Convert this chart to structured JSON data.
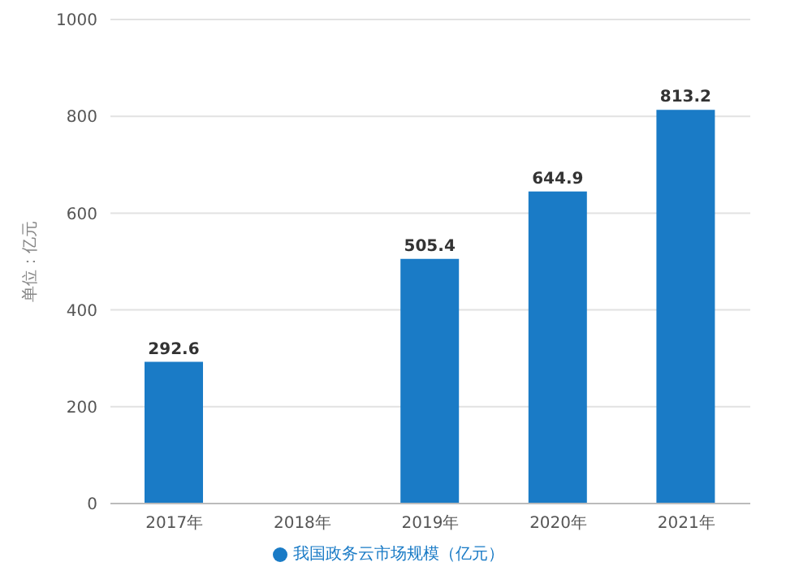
{
  "chart_data": {
    "type": "bar",
    "ylabel": "单位：亿元",
    "categories": [
      "2017年",
      "2018年",
      "2019年",
      "2020年",
      "2021年"
    ],
    "series": [
      {
        "name": "我国政务云市场规模（亿元）",
        "color": "#1a7bc6",
        "values": [
          292.6,
          null,
          505.4,
          644.9,
          813.2
        ]
      }
    ],
    "data_labels": true,
    "ylim": [
      0,
      1000
    ],
    "yticks": [
      0,
      200,
      400,
      600,
      800,
      1000
    ],
    "grid": "y",
    "legend": "bottom"
  }
}
